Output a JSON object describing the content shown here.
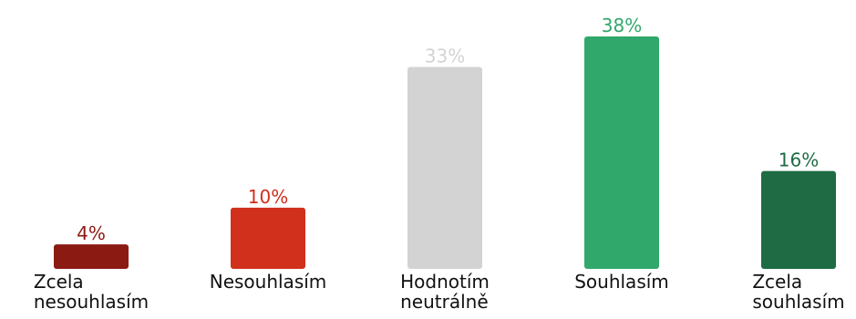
{
  "chart_data": {
    "type": "bar",
    "categories": [
      "Zcela nesouhlasím",
      "Nesouhlasím",
      "Hodnotím neutrálně",
      "Souhlasím",
      "Zcela souhlasím"
    ],
    "values": [
      4,
      10,
      33,
      38,
      16
    ],
    "value_labels": [
      "4%",
      "10%",
      "33%",
      "38%",
      "16%"
    ],
    "colors": [
      "#8b1a13",
      "#d0301c",
      "#d3d3d3",
      "#31a86b",
      "#1e6b44"
    ]
  }
}
